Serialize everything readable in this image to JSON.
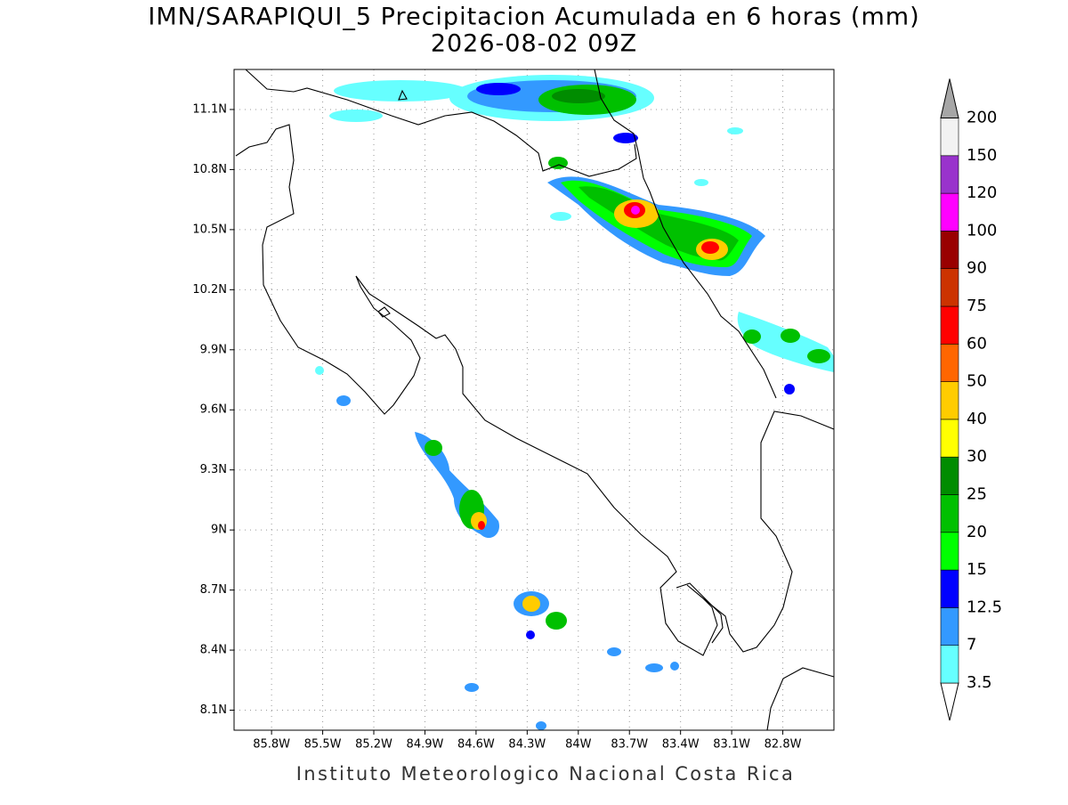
{
  "header": {
    "title": "IMN/SARAPIQUI_5 Precipitacion Acumulada en 6 horas (mm)",
    "subtitle": "2026-08-02 09Z"
  },
  "map": {
    "xlim": [
      -86.02,
      -82.5
    ],
    "ylim": [
      8.0,
      11.3
    ],
    "xticks": [
      {
        "value": -85.8,
        "label": "85.8W"
      },
      {
        "value": -85.5,
        "label": "85.5W"
      },
      {
        "value": -85.2,
        "label": "85.2W"
      },
      {
        "value": -84.9,
        "label": "84.9W"
      },
      {
        "value": -84.6,
        "label": "84.6W"
      },
      {
        "value": -84.3,
        "label": "84.3W"
      },
      {
        "value": -84.0,
        "label": "84W"
      },
      {
        "value": -83.7,
        "label": "83.7W"
      },
      {
        "value": -83.4,
        "label": "83.4W"
      },
      {
        "value": -83.1,
        "label": "83.1W"
      },
      {
        "value": -82.8,
        "label": "82.8W"
      }
    ],
    "yticks": [
      {
        "value": 8.1,
        "label": "8.1N"
      },
      {
        "value": 8.4,
        "label": "8.4N"
      },
      {
        "value": 8.7,
        "label": "8.7N"
      },
      {
        "value": 9.0,
        "label": "9N"
      },
      {
        "value": 9.3,
        "label": "9.3N"
      },
      {
        "value": 9.6,
        "label": "9.6N"
      },
      {
        "value": 9.9,
        "label": "9.9N"
      },
      {
        "value": 10.2,
        "label": "10.2N"
      },
      {
        "value": 10.5,
        "label": "10.5N"
      },
      {
        "value": 10.8,
        "label": "10.8N"
      },
      {
        "value": 11.1,
        "label": "11.1N"
      }
    ],
    "grid": true
  },
  "colorbar": {
    "levels": [
      3.5,
      7,
      12.5,
      15,
      20,
      25,
      30,
      40,
      50,
      60,
      75,
      90,
      100,
      120,
      150,
      200
    ],
    "colors": [
      "#66ffff",
      "#3399ff",
      "#0000ff",
      "#00ff00",
      "#00c000",
      "#008c00",
      "#ffff00",
      "#ffcc00",
      "#ff6600",
      "#ff0000",
      "#cc3300",
      "#990000",
      "#ff00ff",
      "#9933cc",
      "#f2f2f2"
    ],
    "under_color": "#ffffff",
    "over_color": "#a6a6a6"
  },
  "footer": {
    "credit": "Instituto Meteorologico Nacional Costa Rica"
  }
}
